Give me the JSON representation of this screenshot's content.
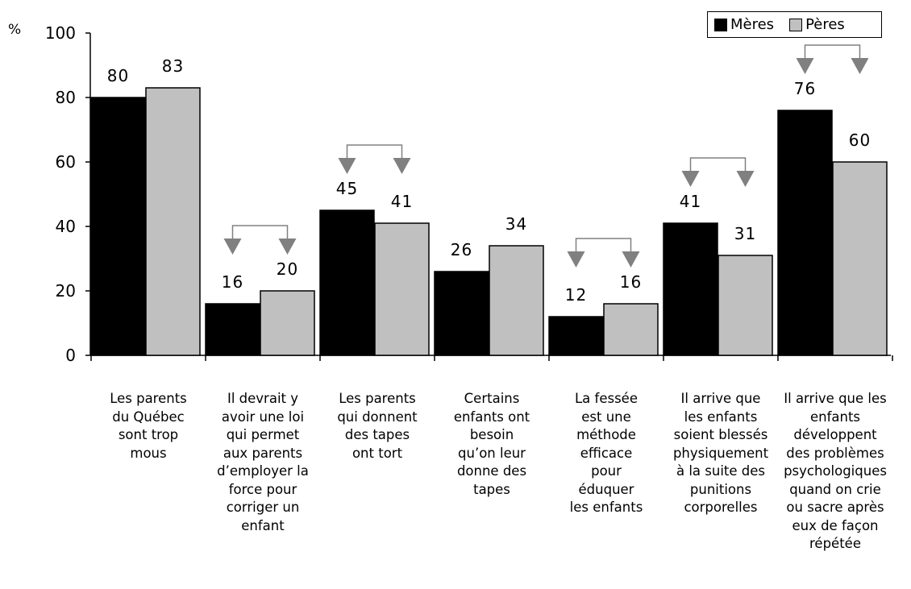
{
  "chart_data": {
    "type": "bar",
    "y_unit": "%",
    "ylim": [
      0,
      100
    ],
    "yticks": [
      0,
      20,
      40,
      60,
      80,
      100
    ],
    "grid": false,
    "legend_position": "top-right",
    "categories": [
      "Les parents du Québec sont trop mous",
      "Il devrait y avoir une loi qui permet aux parents d’employer la force pour corriger un enfant",
      "Les parents qui donnent des tapes ont tort",
      "Certains enfants ont besoin qu’on leur donne des tapes",
      "La fessée est une méthode efficace pour éduquer les enfants",
      "Il arrive que les enfants soient blessés physiquement à la suite des punitions corporelles",
      "Il arrive que les enfants développent des problèmes psychologiques quand on crie ou sacre après eux de façon répétée"
    ],
    "category_lines": [
      [
        "Les parents",
        "du Québec",
        "sont trop",
        "mous"
      ],
      [
        "Il devrait y",
        "avoir une loi",
        "qui permet",
        "aux parents",
        "d’employer la",
        "force pour",
        "corriger un",
        "enfant"
      ],
      [
        "Les parents",
        "qui donnent",
        "des tapes",
        "ont tort"
      ],
      [
        "Certains",
        "enfants ont",
        "besoin",
        "qu’on leur",
        "donne des",
        "tapes"
      ],
      [
        "La fessée",
        "est une",
        "méthode",
        "efficace",
        "pour",
        "éduquer",
        "les enfants"
      ],
      [
        "Il arrive que",
        "les enfants",
        "soient blessés",
        "physiquement",
        "à la suite des",
        "punitions",
        "corporelles"
      ],
      [
        "Il arrive que les",
        "enfants",
        "développent",
        "des problèmes",
        "psychologiques",
        "quand on crie",
        "ou sacre après",
        "eux de façon",
        "répétée"
      ]
    ],
    "series": [
      {
        "name": "Mères",
        "color": "#000000",
        "values": [
          80,
          16,
          45,
          26,
          12,
          41,
          76
        ]
      },
      {
        "name": "Pères",
        "color": "#c0c0c0",
        "values": [
          83,
          20,
          41,
          34,
          16,
          31,
          60
        ]
      }
    ],
    "significance_brackets": [
      false,
      true,
      true,
      false,
      true,
      true,
      true
    ],
    "bracket_color": "#808080"
  }
}
